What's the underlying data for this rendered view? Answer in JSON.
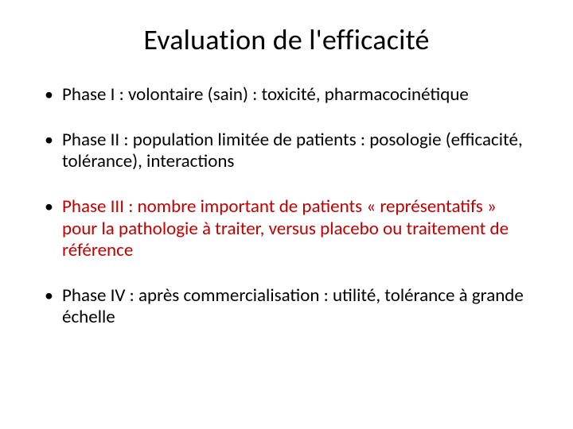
{
  "slide": {
    "title": "Evaluation de l'efficacité",
    "title_fontsize": 36,
    "title_color": "#000000",
    "background_color": "#ffffff",
    "bullet_fontsize": 23,
    "bullets": [
      {
        "color": "#000000",
        "label": "Phase I ",
        "text": ": volontaire (sain) : toxicité, pharmacocinétique"
      },
      {
        "color": "#000000",
        "label": "Phase II ",
        "text": ": population limitée de patients : posologie (efficacité, tolérance), interactions"
      },
      {
        "color": "#c00000",
        "label": "Phase III ",
        "text": ": nombre important de patients « représentatifs » pour la pathologie à traiter, versus placebo ou traitement de référence"
      },
      {
        "color": "#000000",
        "label": "Phase IV",
        "text": " : après commercialisation : utilité, tolérance à grande échelle"
      }
    ]
  }
}
